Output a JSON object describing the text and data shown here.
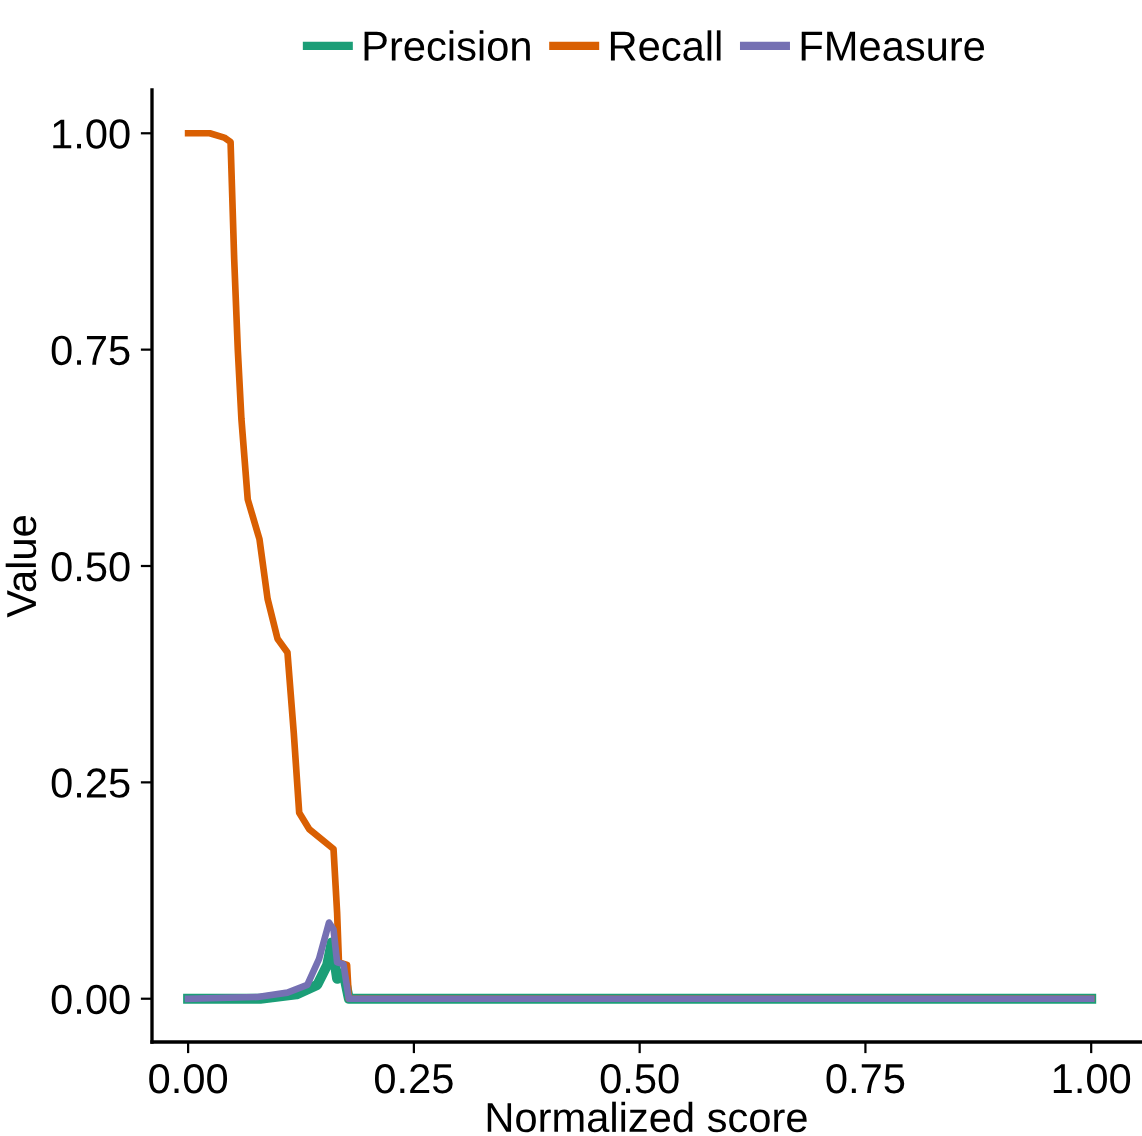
{
  "chart_data": {
    "type": "line",
    "xlabel": "Normalized score",
    "ylabel": "Value",
    "xlim": [
      -0.04,
      1.055
    ],
    "xticks": [
      {
        "value": 0,
        "label": "0.00"
      },
      {
        "value": 0.25,
        "label": "0.25"
      },
      {
        "value": 0.5,
        "label": "0.50"
      },
      {
        "value": 0.75,
        "label": "0.75"
      },
      {
        "value": 1,
        "label": "1.00"
      }
    ],
    "ylim": [
      -0.05,
      1.05
    ],
    "yticks": [
      {
        "value": 0,
        "label": "0.00"
      },
      {
        "value": 0.25,
        "label": "0.25"
      },
      {
        "value": 0.5,
        "label": "0.50"
      },
      {
        "value": 0.75,
        "label": "0.75"
      },
      {
        "value": 1,
        "label": "1.00"
      }
    ],
    "grid": false,
    "legend": "top",
    "marker": "none",
    "line_style": "solid",
    "series": [
      {
        "name": "Precision",
        "color": "#1b9e77",
        "x": [
          0,
          0.08,
          0.12,
          0.143,
          0.154,
          0.159,
          0.165,
          0.172,
          0.178,
          1.0
        ],
        "values": [
          0,
          0,
          0.005,
          0.016,
          0.039,
          0.065,
          0.023,
          0.03,
          0,
          0
        ]
      },
      {
        "name": "Recall",
        "color": "#d95f02",
        "x": [
          0,
          0.024,
          0.04,
          0.047,
          0.051,
          0.055,
          0.059,
          0.066,
          0.079,
          0.088,
          0.099,
          0.11,
          0.117,
          0.123,
          0.134,
          0.161,
          0.165,
          0.167,
          0.176,
          0.178,
          1.0
        ],
        "values": [
          1,
          1,
          0.995,
          0.99,
          0.855,
          0.75,
          0.67,
          0.577,
          0.531,
          0.462,
          0.416,
          0.4,
          0.307,
          0.215,
          0.196,
          0.173,
          0.099,
          0.042,
          0.039,
          0,
          0
        ]
      },
      {
        "name": "FMeasure",
        "color": "#7570b3",
        "x": [
          0,
          0.077,
          0.11,
          0.132,
          0.145,
          0.156,
          0.161,
          0.165,
          0.172,
          0.178,
          1.0
        ],
        "values": [
          0,
          0.002,
          0.007,
          0.016,
          0.046,
          0.088,
          0.08,
          0.042,
          0.04,
          0,
          0
        ]
      }
    ]
  }
}
